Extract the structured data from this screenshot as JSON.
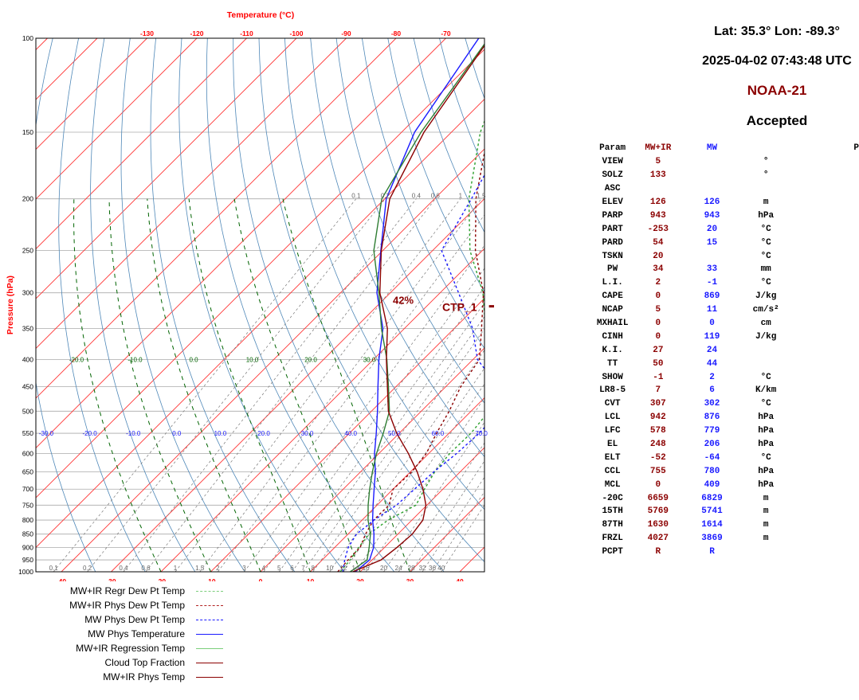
{
  "header": {
    "location": "Lat: 35.3° Lon: -89.3°",
    "datetime": "2025-04-02 07:43:48 UTC",
    "satellite": "NOAA-21",
    "status": "Accepted"
  },
  "colors": {
    "mwir": "#8b0000",
    "mw": "#1a1aff",
    "green": "#006400",
    "isotherm": "#ff3333",
    "dry_adiabat": "#4f88b8",
    "mixing_ratio": "#777777"
  },
  "params_table": {
    "headers": [
      "Param",
      "MW+IR",
      "MW",
      "",
      "P"
    ],
    "rows": [
      [
        "VIEW",
        "5",
        "",
        "°"
      ],
      [
        "SOLZ",
        "133",
        "",
        "°"
      ],
      [
        "ASC",
        "",
        "",
        ""
      ],
      [
        "ELEV",
        "126",
        "126",
        "m"
      ],
      [
        "PARP",
        "943",
        "943",
        "hPa"
      ],
      [
        "PART",
        "-253",
        "20",
        "°C"
      ],
      [
        "PARD",
        "54",
        "15",
        "°C"
      ],
      [
        "TSKN",
        "20",
        "",
        "°C"
      ],
      [
        "PW",
        "34",
        "33",
        "mm"
      ],
      [
        "L.I.",
        "2",
        "-1",
        "°C"
      ],
      [
        "CAPE",
        "0",
        "869",
        "J/kg"
      ],
      [
        "NCAP",
        "5",
        "11",
        "cm/s²"
      ],
      [
        "MXHAIL",
        "0",
        "0",
        "cm"
      ],
      [
        "CINH",
        "0",
        "119",
        "J/kg"
      ],
      [
        "K.I.",
        "27",
        "24",
        ""
      ],
      [
        "TT",
        "50",
        "44",
        ""
      ],
      [
        "SHOW",
        "-1",
        "2",
        "°C"
      ],
      [
        "LR8-5",
        "7",
        "6",
        "K/km"
      ],
      [
        "CVT",
        "307",
        "302",
        "°C"
      ],
      [
        "LCL",
        "942",
        "876",
        "hPa"
      ],
      [
        "LFC",
        "578",
        "779",
        "hPa"
      ],
      [
        "EL",
        "248",
        "206",
        "hPa"
      ],
      [
        "ELT",
        "-52",
        "-64",
        "°C"
      ],
      [
        "CCL",
        "755",
        "780",
        "hPa"
      ],
      [
        "MCL",
        "0",
        "409",
        "hPa"
      ],
      [
        "-20C",
        "6659",
        "6829",
        "m"
      ],
      [
        "15TH",
        "5769",
        "5741",
        "m"
      ],
      [
        "87TH",
        "1630",
        "1614",
        "m"
      ],
      [
        "FRZL",
        "4027",
        "3869",
        "m"
      ],
      [
        "PCPT",
        "R",
        "R",
        ""
      ]
    ]
  },
  "chart_data": {
    "type": "line",
    "subtype": "skew-t log-p",
    "title": "Temperature (°C)",
    "ylabel": "Pressure (hPa)",
    "y_scale": "log",
    "ylim": [
      1000,
      100
    ],
    "xlim": [
      -45,
      45
    ],
    "y_ticks": [
      100,
      150,
      200,
      250,
      300,
      350,
      400,
      450,
      500,
      550,
      600,
      650,
      700,
      750,
      800,
      850,
      900,
      950,
      1000
    ],
    "x_ticks_bottom": [
      -40,
      -30,
      -20,
      -10,
      0,
      10,
      20,
      30,
      40
    ],
    "x_ticks_top": [
      -130,
      -120,
      -110,
      -100,
      -90,
      -80,
      -70
    ],
    "theta_e_labels": [
      -20.0,
      -10.0,
      0.0,
      10.0,
      20.0,
      30.0
    ],
    "theta_e_label_texts": [
      "-20.0",
      "-10.0",
      "0.0",
      "10.0",
      "20.0",
      "30.0"
    ],
    "theta_labels": [
      -30.0,
      -20.0,
      -10.0,
      0.0,
      10.0,
      20.0,
      30.0,
      40.0,
      50.0,
      60.0,
      70.0
    ],
    "theta_label_texts": [
      "-30.0",
      "-20.0",
      "-10.0",
      "0.0",
      "10.0",
      "20.0",
      "30.0",
      "40.0",
      "50.0",
      "60.0",
      "70.0"
    ],
    "mixing_ratio_top_labels": [
      "0.1",
      "0.2",
      "0.4",
      "0.6",
      "1",
      "1.5",
      "2"
    ],
    "mixing_ratio_top_values": [
      0.1,
      0.2,
      0.4,
      0.6,
      1,
      1.5,
      2
    ],
    "mixing_ratio_bottom_labels": [
      "0.1",
      "0.2",
      "0.4",
      "0.6",
      "1",
      "1.5",
      "2",
      "3",
      "4",
      "5",
      "6",
      "7",
      "8",
      "10",
      "12",
      "14",
      "16",
      "20",
      "24",
      "28",
      "32",
      "36",
      "40"
    ],
    "mixing_ratio_bottom_values": [
      0.1,
      0.2,
      0.4,
      0.6,
      1,
      1.5,
      2,
      3,
      4,
      5,
      6,
      7,
      8,
      10,
      12,
      14,
      16,
      20,
      24,
      28,
      32,
      36,
      40
    ],
    "cloud_top": {
      "pressure": 318,
      "fraction_label": "42%",
      "label": "CTP_1",
      "t_start": 1,
      "t_end": 18
    },
    "series": [
      {
        "name": "MW+IR Regr Dew Pt Temp",
        "color": "#2ca02c",
        "dash": true,
        "points": [
          [
            1000,
            16
          ],
          [
            950,
            15.6
          ],
          [
            900,
            14.8
          ],
          [
            850,
            14.2
          ],
          [
            800,
            15.2
          ],
          [
            750,
            17.8
          ],
          [
            700,
            16.3
          ],
          [
            650,
            14.9
          ],
          [
            600,
            14.2
          ],
          [
            550,
            14.4
          ],
          [
            500,
            13.6
          ],
          [
            450,
            9.8
          ],
          [
            400,
            4.1
          ],
          [
            350,
            -3.7
          ],
          [
            300,
            -11.4
          ],
          [
            250,
            -22.5
          ],
          [
            200,
            -33.1
          ],
          [
            150,
            -44.2
          ],
          [
            100,
            -55.9
          ]
        ]
      },
      {
        "name": "MW+IR Phys Dew Pt Temp",
        "color": "#8b0000",
        "dash": true,
        "points": [
          [
            1000,
            15.5
          ],
          [
            950,
            15.2
          ],
          [
            900,
            15.1
          ],
          [
            850,
            13.5
          ],
          [
            800,
            12.3
          ],
          [
            750,
            12.4
          ],
          [
            700,
            10
          ],
          [
            650,
            10.3
          ],
          [
            600,
            9.5
          ],
          [
            550,
            7.5
          ],
          [
            500,
            5.6
          ],
          [
            450,
            3
          ],
          [
            400,
            1.3
          ],
          [
            350,
            -4.5
          ],
          [
            300,
            -11.3
          ],
          [
            250,
            -21.4
          ],
          [
            200,
            -31.7
          ],
          [
            150,
            -42.6
          ],
          [
            100,
            -55
          ]
        ]
      },
      {
        "name": "MW Phys Dew Pt Temp",
        "color": "#1a1aff",
        "dash": true,
        "points": [
          [
            1000,
            16.5
          ],
          [
            950,
            14.5
          ],
          [
            900,
            12.7
          ],
          [
            850,
            11.7
          ],
          [
            800,
            12.4
          ],
          [
            750,
            13.9
          ],
          [
            700,
            14.3
          ],
          [
            650,
            14.7
          ],
          [
            600,
            15.6
          ],
          [
            550,
            16.1
          ],
          [
            500,
            15.6
          ],
          [
            450,
            10.6
          ],
          [
            400,
            0.9
          ],
          [
            350,
            -6.3
          ],
          [
            300,
            -16.3
          ],
          [
            250,
            -28.2
          ],
          [
            200,
            -32.6
          ],
          [
            150,
            -38.6
          ],
          [
            100,
            -52.2
          ]
        ]
      },
      {
        "name": "MW Phys Temperature",
        "color": "#1a1aff",
        "dash": false,
        "points": [
          [
            1000,
            19
          ],
          [
            950,
            19.5
          ],
          [
            900,
            17.8
          ],
          [
            850,
            15.2
          ],
          [
            800,
            12.1
          ],
          [
            750,
            9.2
          ],
          [
            700,
            6.2
          ],
          [
            650,
            3
          ],
          [
            600,
            -0.9
          ],
          [
            550,
            -4.6
          ],
          [
            500,
            -8.8
          ],
          [
            450,
            -13.6
          ],
          [
            400,
            -18.9
          ],
          [
            350,
            -24.3
          ],
          [
            300,
            -32.7
          ],
          [
            250,
            -40.4
          ],
          [
            200,
            -49.7
          ],
          [
            150,
            -57.4
          ],
          [
            100,
            -63.4
          ]
        ]
      },
      {
        "name": "MW+IR Regression Temp",
        "color": "#2e7d32",
        "dash": false,
        "points": [
          [
            1000,
            18
          ],
          [
            950,
            19
          ],
          [
            900,
            16.9
          ],
          [
            850,
            14.5
          ],
          [
            800,
            11.2
          ],
          [
            750,
            8.2
          ],
          [
            700,
            5.3
          ],
          [
            650,
            2.4
          ],
          [
            600,
            -0.5
          ],
          [
            550,
            -3.2
          ],
          [
            500,
            -6.4
          ],
          [
            450,
            -11.5
          ],
          [
            400,
            -17.3
          ],
          [
            350,
            -24.6
          ],
          [
            300,
            -32.3
          ],
          [
            250,
            -41.8
          ],
          [
            200,
            -50.6
          ],
          [
            150,
            -56.1
          ],
          [
            100,
            -61.4
          ]
        ]
      },
      {
        "name": "Cloud Top Fraction",
        "color": "#8b0000",
        "dash": false,
        "points": []
      },
      {
        "name": "MW+IR Phys Temp",
        "color": "#8b0000",
        "dash": false,
        "points": [
          [
            1000,
            18.5
          ],
          [
            950,
            21.8
          ],
          [
            900,
            22.5
          ],
          [
            850,
            22.9
          ],
          [
            800,
            22.2
          ],
          [
            750,
            19.8
          ],
          [
            700,
            16
          ],
          [
            650,
            11.4
          ],
          [
            600,
            5.9
          ],
          [
            550,
            -0.5
          ],
          [
            500,
            -6.6
          ],
          [
            450,
            -11.7
          ],
          [
            400,
            -17.4
          ],
          [
            350,
            -23.4
          ],
          [
            300,
            -32.1
          ],
          [
            250,
            -40.3
          ],
          [
            200,
            -49
          ],
          [
            150,
            -55.5
          ],
          [
            100,
            -61.2
          ]
        ]
      }
    ]
  },
  "legend": {
    "items": [
      {
        "label": "MW+IR Regr Dew Pt Temp",
        "color": "#7ccf7c",
        "style": "dashed"
      },
      {
        "label": "MW+IR Phys Dew Pt Temp",
        "color": "#b22222",
        "style": "dashed"
      },
      {
        "label": "MW Phys Dew Pt Temp",
        "color": "#1a1aff",
        "style": "dashed"
      },
      {
        "label": "MW Phys Temperature",
        "color": "#1a1aff",
        "style": "solid"
      },
      {
        "label": "MW+IR Regression Temp",
        "color": "#7ccf7c",
        "style": "solid"
      },
      {
        "label": "Cloud Top Fraction",
        "color": "#8b0000",
        "style": "solid"
      },
      {
        "label": "MW+IR Phys Temp",
        "color": "#8b0000",
        "style": "solid"
      }
    ]
  }
}
